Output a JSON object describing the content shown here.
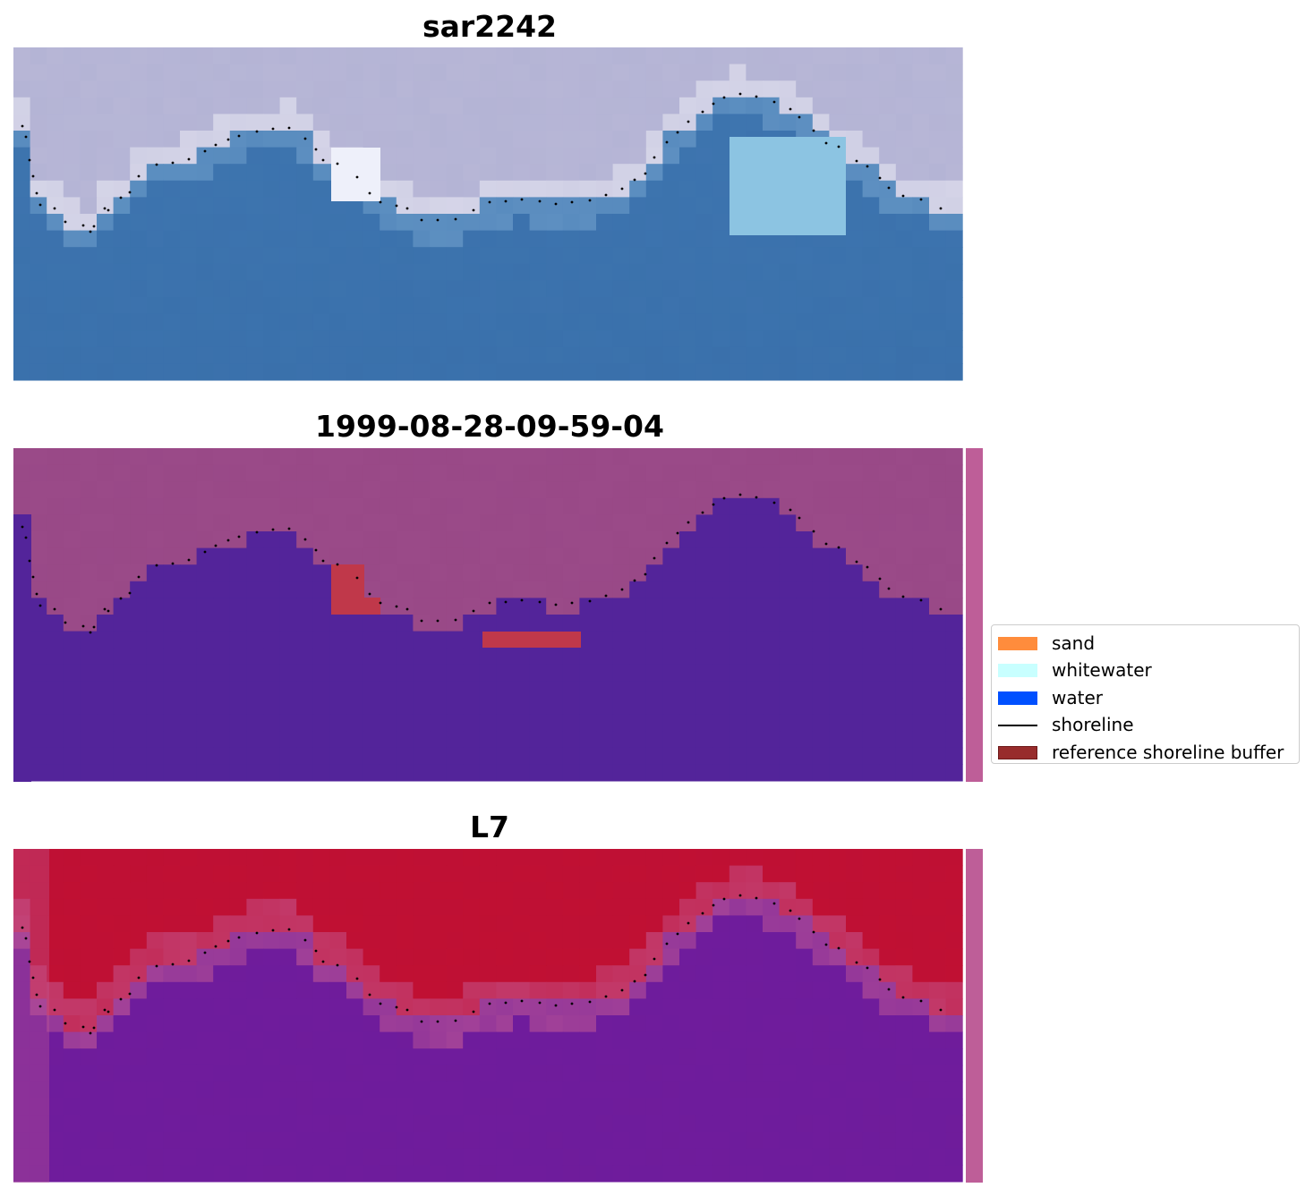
{
  "panels": [
    {
      "title": "sar2242",
      "kind": "rgb"
    },
    {
      "title": "1999-08-28-09-59-04",
      "kind": "classified"
    },
    {
      "title": "L7",
      "kind": "index"
    }
  ],
  "legend": {
    "items": [
      {
        "label": "sand",
        "color": "#ff8c3c",
        "type": "patch"
      },
      {
        "label": "whitewater",
        "color": "#c8ffff",
        "type": "patch"
      },
      {
        "label": "water",
        "color": "#0050ff",
        "type": "patch"
      },
      {
        "label": "shoreline",
        "color": "#000000",
        "type": "line"
      },
      {
        "label": "reference shoreline buffer",
        "color": "#982c2c",
        "type": "patch"
      }
    ]
  },
  "colors": {
    "sky_land": "#b7b6d6",
    "shore_light": "#dcdcec",
    "water_rgb": "#3f76b0",
    "classified_land": "#9a4a88",
    "classified_water": "#53249a",
    "buffer": "#c0384a",
    "index_land": "#c01033",
    "index_transition": "#c45a95",
    "index_water": "#6e1c9c",
    "side_bar": "#be5e98",
    "shoreline_dots": "#000000"
  }
}
